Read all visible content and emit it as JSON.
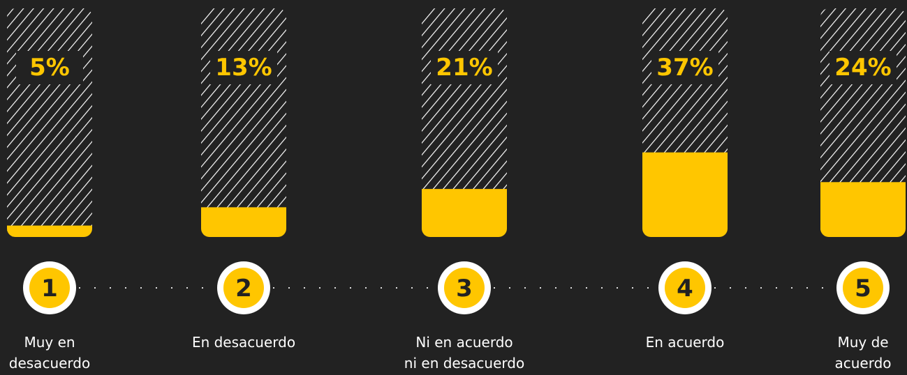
{
  "chart_data": {
    "type": "bar",
    "categories": [
      "Muy en\ndesacuerdo",
      "En desacuerdo",
      "Ni en acuerdo\nni en desacuerdo",
      "En acuerdo",
      "Muy de\nacuerdo"
    ],
    "numbers": [
      "1",
      "2",
      "3",
      "4",
      "5"
    ],
    "values": [
      5,
      13,
      21,
      37,
      24
    ],
    "value_labels": [
      "5%",
      "13%",
      "21%",
      "37%",
      "24%"
    ],
    "color": "#ffc600",
    "ylim": [
      0,
      100
    ]
  }
}
